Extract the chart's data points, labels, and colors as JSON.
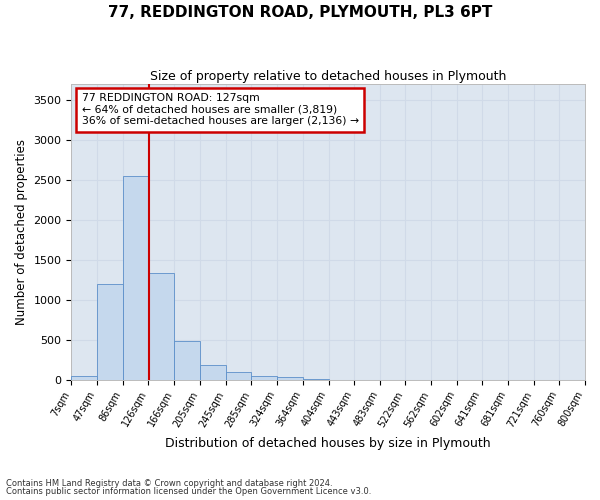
{
  "title": "77, REDDINGTON ROAD, PLYMOUTH, PL3 6PT",
  "subtitle": "Size of property relative to detached houses in Plymouth",
  "xlabel": "Distribution of detached houses by size in Plymouth",
  "ylabel": "Number of detached properties",
  "bar_labels": [
    "7sqm",
    "47sqm",
    "86sqm",
    "126sqm",
    "166sqm",
    "205sqm",
    "245sqm",
    "285sqm",
    "324sqm",
    "364sqm",
    "404sqm",
    "443sqm",
    "483sqm",
    "522sqm",
    "562sqm",
    "602sqm",
    "641sqm",
    "681sqm",
    "721sqm",
    "760sqm",
    "800sqm"
  ],
  "bar_values": [
    50,
    1200,
    2550,
    1330,
    490,
    185,
    100,
    50,
    35,
    5,
    0,
    0,
    0,
    0,
    0,
    0,
    0,
    0,
    0,
    0,
    0
  ],
  "bar_color": "#c5d8ed",
  "bar_edge_color": "#5b8fc9",
  "grid_color": "#d0dae8",
  "background_color": "#dde6f0",
  "property_line_x": 127,
  "property_line_color": "#cc0000",
  "annotation_text": "77 REDDINGTON ROAD: 127sqm\n← 64% of detached houses are smaller (3,819)\n36% of semi-detached houses are larger (2,136) →",
  "annotation_box_color": "#cc0000",
  "ylim": [
    0,
    3700
  ],
  "yticks": [
    0,
    500,
    1000,
    1500,
    2000,
    2500,
    3000,
    3500
  ],
  "footnote1": "Contains HM Land Registry data © Crown copyright and database right 2024.",
  "footnote2": "Contains public sector information licensed under the Open Government Licence v3.0."
}
